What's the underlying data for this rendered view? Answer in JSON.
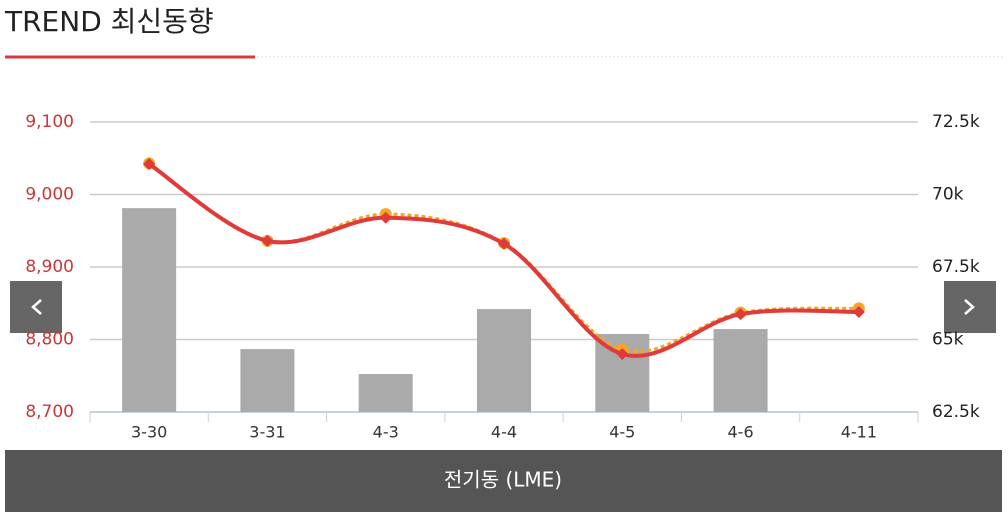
{
  "chart_data": {
    "type": "bar_line",
    "title": "TREND 최신동향",
    "x_label": "전기동 (LME)",
    "categories": [
      "3-30",
      "3-31",
      "4-3",
      "4-4",
      "4-5",
      "4-6",
      "4-11"
    ],
    "series": [
      {
        "type": "bar",
        "axis": "y2",
        "color": "#aaaaaa",
        "values": [
          69530,
          64670,
          63810,
          66050,
          65190,
          65360,
          null
        ]
      },
      {
        "type": "line",
        "color": "#f5a623",
        "dashed": true,
        "marker": "circle",
        "values": [
          9043,
          8936,
          8973,
          8933,
          8786,
          8837,
          8843
        ]
      },
      {
        "type": "line",
        "color": "#e03a3a",
        "dashed": false,
        "marker": "diamond",
        "values": [
          9042,
          8936,
          8968,
          8932,
          8780,
          8835,
          8838
        ]
      }
    ],
    "ylim": [
      8700,
      9100
    ],
    "yticks": [
      {
        "value": 8700,
        "label": "8,700"
      },
      {
        "value": 8800,
        "label": "8,800"
      },
      {
        "value": 8900,
        "label": "8,900"
      },
      {
        "value": 9000,
        "label": "9,000"
      },
      {
        "value": 9100,
        "label": "9,100"
      }
    ],
    "y2lim": [
      62500,
      72500
    ],
    "y2ticks": [
      {
        "value": 62500,
        "label": "62.5k"
      },
      {
        "value": 65000,
        "label": "65k"
      },
      {
        "value": 67500,
        "label": "67.5k"
      },
      {
        "value": 70000,
        "label": "70k"
      },
      {
        "value": 72500,
        "label": "72.5k"
      }
    ],
    "grid": true
  }
}
